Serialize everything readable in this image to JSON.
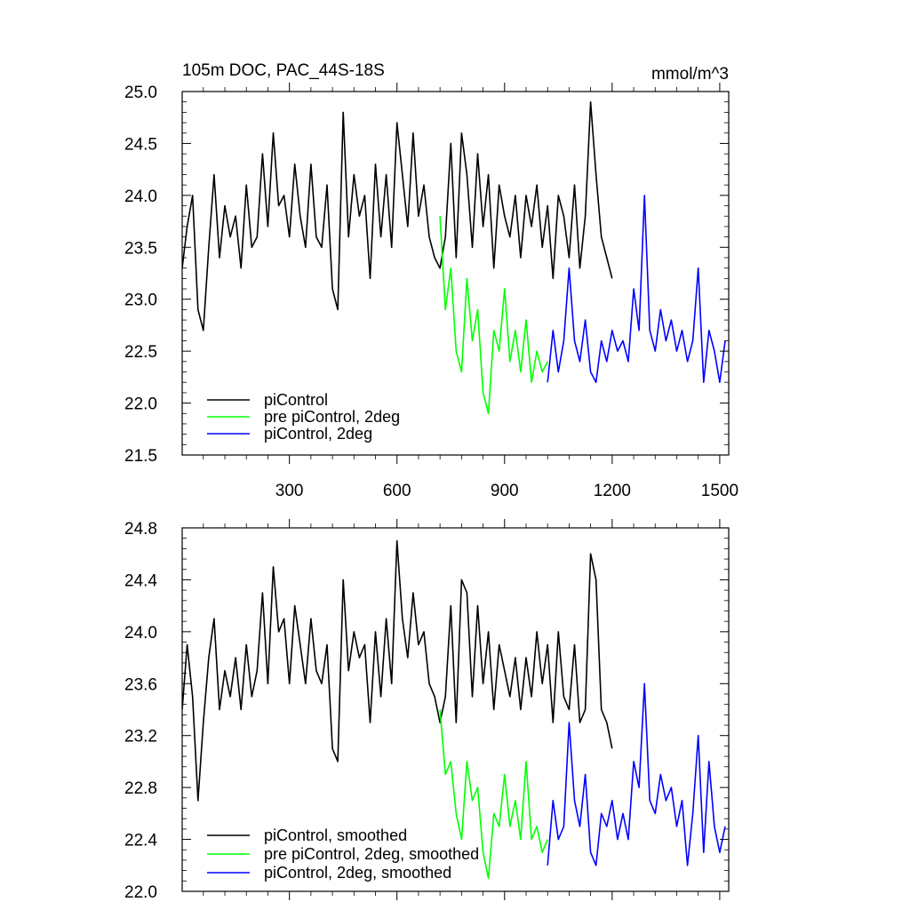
{
  "chart_data": [
    {
      "type": "line",
      "title": "105m DOC, PAC_44S-18S",
      "units": "mmol/m^3",
      "xlim": [
        1,
        1525
      ],
      "ylim": [
        21.5,
        25.0
      ],
      "xticks": [
        300,
        600,
        900,
        1200,
        1500
      ],
      "xtick_labels": [
        "300",
        "600",
        "900",
        "1200",
        "1500"
      ],
      "yticks": [
        21.5,
        22.0,
        22.5,
        23.0,
        23.5,
        24.0,
        24.5,
        25.0
      ],
      "ytick_labels": [
        "21.5",
        "22.0",
        "22.5",
        "23.0",
        "23.5",
        "24.0",
        "24.5",
        "25.0"
      ],
      "grid": false,
      "legend_position": "bottom-left",
      "series": [
        {
          "name": "piControl",
          "color": "#000000",
          "x": [
            1,
            15,
            30,
            45,
            60,
            75,
            90,
            105,
            120,
            135,
            150,
            165,
            180,
            195,
            210,
            225,
            240,
            255,
            270,
            285,
            300,
            315,
            330,
            345,
            360,
            375,
            390,
            405,
            420,
            435,
            450,
            465,
            480,
            495,
            510,
            525,
            540,
            555,
            570,
            585,
            600,
            615,
            630,
            645,
            660,
            675,
            690,
            705,
            720,
            735,
            750,
            765,
            780,
            795,
            810,
            825,
            840,
            855,
            870,
            885,
            900,
            915,
            930,
            945,
            960,
            975,
            990,
            1005,
            1020,
            1035,
            1050,
            1065,
            1080,
            1095,
            1110,
            1125,
            1140,
            1155,
            1170,
            1185,
            1200
          ],
          "values": [
            23.3,
            23.7,
            24.0,
            22.9,
            22.7,
            23.5,
            24.2,
            23.4,
            23.9,
            23.6,
            23.8,
            23.3,
            24.1,
            23.5,
            23.6,
            24.4,
            23.7,
            24.6,
            23.9,
            24.0,
            23.6,
            24.3,
            23.8,
            23.5,
            24.3,
            23.6,
            23.5,
            24.1,
            23.1,
            22.9,
            24.8,
            23.6,
            24.2,
            23.8,
            24.0,
            23.2,
            24.3,
            23.6,
            24.2,
            23.5,
            24.7,
            24.2,
            23.7,
            24.6,
            23.8,
            24.1,
            23.6,
            23.4,
            23.3,
            23.6,
            24.5,
            23.4,
            24.6,
            24.2,
            23.5,
            24.4,
            23.7,
            24.2,
            23.3,
            24.1,
            23.8,
            23.6,
            24.0,
            23.4,
            24.0,
            23.7,
            24.1,
            23.5,
            23.9,
            23.2,
            24.0,
            23.8,
            23.4,
            24.1,
            23.3,
            23.8,
            24.9,
            24.2,
            23.6,
            23.4,
            23.2
          ]
        },
        {
          "name": "pre piControl, 2deg",
          "color": "#00ff00",
          "x": [
            720,
            735,
            750,
            765,
            780,
            795,
            810,
            825,
            840,
            855,
            870,
            885,
            900,
            915,
            930,
            945,
            960,
            975,
            990,
            1005,
            1020
          ],
          "values": [
            23.8,
            22.9,
            23.3,
            22.5,
            22.3,
            23.2,
            22.6,
            22.9,
            22.1,
            21.9,
            22.7,
            22.5,
            23.1,
            22.4,
            22.7,
            22.3,
            22.8,
            22.2,
            22.5,
            22.3,
            22.4
          ]
        },
        {
          "name": "piControl, 2deg",
          "color": "#0000ff",
          "x": [
            1020,
            1035,
            1050,
            1065,
            1080,
            1095,
            1110,
            1125,
            1140,
            1155,
            1170,
            1185,
            1200,
            1215,
            1230,
            1245,
            1260,
            1275,
            1290,
            1305,
            1320,
            1335,
            1350,
            1365,
            1380,
            1395,
            1410,
            1425,
            1440,
            1455,
            1470,
            1485,
            1500,
            1515
          ],
          "values": [
            22.2,
            22.7,
            22.3,
            22.6,
            23.3,
            22.6,
            22.4,
            22.8,
            22.3,
            22.2,
            22.6,
            22.4,
            22.7,
            22.5,
            22.6,
            22.4,
            23.1,
            22.7,
            24.0,
            22.7,
            22.5,
            22.9,
            22.6,
            22.8,
            22.5,
            22.7,
            22.4,
            22.6,
            23.3,
            22.2,
            22.7,
            22.5,
            22.2,
            22.6
          ]
        }
      ]
    },
    {
      "type": "line",
      "xlim": [
        1,
        1525
      ],
      "ylim": [
        22.0,
        24.8
      ],
      "yticks": [
        22.0,
        22.4,
        22.8,
        23.2,
        23.6,
        24.0,
        24.4,
        24.8
      ],
      "ytick_labels": [
        "22.0",
        "22.4",
        "22.8",
        "23.2",
        "23.6",
        "24.0",
        "24.4",
        "24.8"
      ],
      "grid": false,
      "legend_position": "bottom-left",
      "series": [
        {
          "name": "piControl, smoothed",
          "color": "#000000",
          "x": [
            1,
            15,
            30,
            45,
            60,
            75,
            90,
            105,
            120,
            135,
            150,
            165,
            180,
            195,
            210,
            225,
            240,
            255,
            270,
            285,
            300,
            315,
            330,
            345,
            360,
            375,
            390,
            405,
            420,
            435,
            450,
            465,
            480,
            495,
            510,
            525,
            540,
            555,
            570,
            585,
            600,
            615,
            630,
            645,
            660,
            675,
            690,
            705,
            720,
            735,
            750,
            765,
            780,
            795,
            810,
            825,
            840,
            855,
            870,
            885,
            900,
            915,
            930,
            945,
            960,
            975,
            990,
            1005,
            1020,
            1035,
            1050,
            1065,
            1080,
            1095,
            1110,
            1125,
            1140,
            1155,
            1170,
            1185,
            1200
          ],
          "values": [
            23.4,
            23.9,
            23.5,
            22.7,
            23.3,
            23.8,
            24.1,
            23.4,
            23.7,
            23.5,
            23.8,
            23.4,
            23.9,
            23.5,
            23.7,
            24.3,
            23.6,
            24.5,
            24.0,
            24.1,
            23.6,
            24.2,
            23.9,
            23.6,
            24.1,
            23.7,
            23.6,
            23.9,
            23.1,
            23.0,
            24.4,
            23.7,
            24.0,
            23.8,
            23.9,
            23.3,
            24.0,
            23.5,
            24.1,
            23.6,
            24.7,
            24.1,
            23.8,
            24.3,
            23.9,
            24.0,
            23.6,
            23.5,
            23.3,
            23.5,
            24.2,
            23.3,
            24.4,
            24.3,
            23.5,
            24.2,
            23.6,
            24.0,
            23.4,
            23.9,
            23.7,
            23.5,
            23.8,
            23.4,
            23.8,
            23.5,
            24.0,
            23.6,
            23.9,
            23.3,
            24.0,
            23.5,
            23.4,
            23.9,
            23.3,
            23.4,
            24.6,
            24.4,
            23.4,
            23.3,
            23.1
          ]
        },
        {
          "name": "pre piControl, 2deg, smoothed",
          "color": "#00ff00",
          "x": [
            720,
            735,
            750,
            765,
            780,
            795,
            810,
            825,
            840,
            855,
            870,
            885,
            900,
            915,
            930,
            945,
            960,
            975,
            990,
            1005,
            1020
          ],
          "values": [
            23.4,
            22.9,
            23.0,
            22.6,
            22.4,
            23.0,
            22.7,
            22.8,
            22.3,
            22.1,
            22.6,
            22.5,
            22.9,
            22.5,
            22.7,
            22.4,
            23.0,
            22.4,
            22.5,
            22.3,
            22.4
          ]
        },
        {
          "name": "piControl, 2deg, smoothed",
          "color": "#0000ff",
          "x": [
            1020,
            1035,
            1050,
            1065,
            1080,
            1095,
            1110,
            1125,
            1140,
            1155,
            1170,
            1185,
            1200,
            1215,
            1230,
            1245,
            1260,
            1275,
            1290,
            1305,
            1320,
            1335,
            1350,
            1365,
            1380,
            1395,
            1410,
            1425,
            1440,
            1455,
            1470,
            1485,
            1500,
            1515
          ],
          "values": [
            22.2,
            22.7,
            22.4,
            22.5,
            23.3,
            22.7,
            22.5,
            22.9,
            22.3,
            22.2,
            22.6,
            22.5,
            22.7,
            22.4,
            22.6,
            22.4,
            23.0,
            22.8,
            23.6,
            22.7,
            22.6,
            22.9,
            22.7,
            22.8,
            22.5,
            22.7,
            22.2,
            22.6,
            23.2,
            22.3,
            23.0,
            22.5,
            22.3,
            22.5
          ]
        }
      ]
    }
  ]
}
